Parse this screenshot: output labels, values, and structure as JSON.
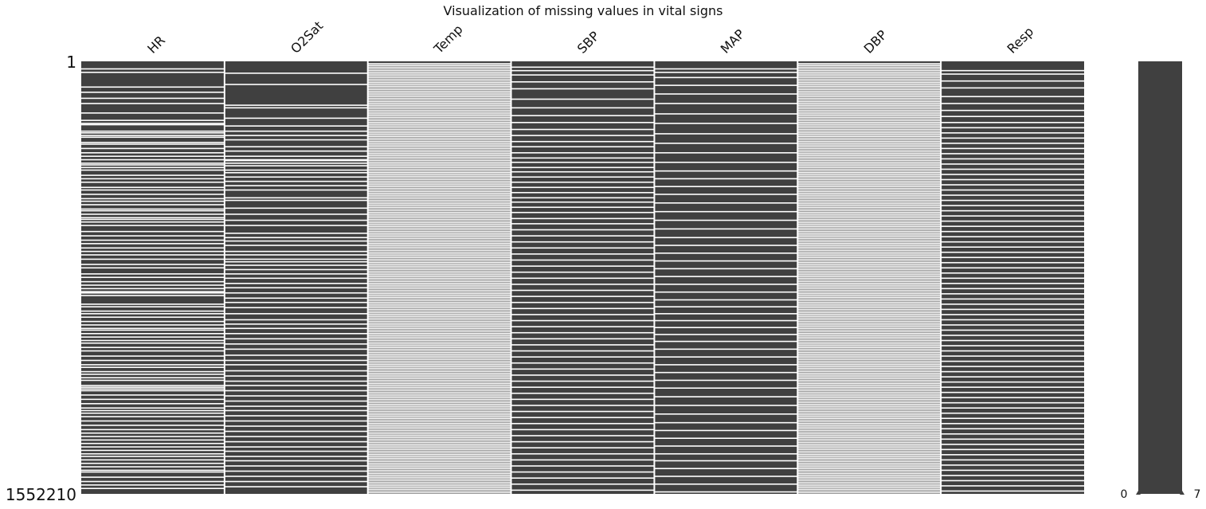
{
  "chart_data": {
    "type": "heatmap",
    "title": "Visualization of missing values in vital signs",
    "columns": [
      "HR",
      "O2Sat",
      "Temp",
      "SBP",
      "MAP",
      "DBP",
      "Resp"
    ],
    "row_range_labels": {
      "first": "1",
      "last": "1552210"
    },
    "rows_total": 1552210,
    "missing_rows": {
      "HR": [
        16,
        24,
        58,
        70,
        84,
        96,
        118,
        135,
        142,
        145,
        160,
        164,
        170,
        174,
        186,
        190,
        200,
        210,
        218,
        226,
        234,
        238,
        244,
        250,
        262,
        270,
        278,
        290,
        296,
        306,
        316,
        322,
        330,
        340,
        344,
        352,
        360,
        364,
        370,
        378,
        392,
        402,
        412,
        420,
        430,
        438,
        446,
        456,
        468,
        476,
        490,
        498,
        508,
        516,
        524,
        531,
        534,
        540,
        560,
        566,
        576,
        582,
        590,
        600,
        608,
        616,
        620,
        628,
        636,
        644,
        650,
        660,
        668,
        680,
        690,
        700,
        706,
        716,
        722,
        730,
        736,
        748,
        752,
        756,
        760,
        770,
        780,
        790,
        800,
        806,
        812,
        820,
        830,
        840,
        850,
        858,
        866,
        874,
        882,
        890,
        898,
        906,
        912,
        920,
        928,
        936,
        944,
        948,
        960,
        970,
        978,
        986
      ],
      "O2Sat": [
        26,
        52,
        100,
        106,
        130,
        148,
        160,
        170,
        180,
        196,
        206,
        218,
        226,
        228,
        234,
        240,
        250,
        256,
        266,
        276,
        286,
        296,
        314,
        320,
        338,
        352,
        366,
        378,
        396,
        406,
        414,
        424,
        438,
        446,
        456,
        462,
        470,
        480,
        490,
        500,
        512,
        522,
        534,
        546,
        556,
        568,
        582,
        596,
        606,
        616,
        628,
        640,
        652,
        664,
        678,
        690,
        700,
        714,
        726,
        738,
        748,
        760,
        772,
        784,
        796,
        806,
        818,
        830,
        842,
        854,
        866,
        878,
        890,
        900,
        912,
        922,
        934,
        946,
        958,
        970,
        982
      ],
      "Temp": [
        4,
        8,
        12,
        16,
        20,
        24,
        28,
        32,
        36,
        40,
        44,
        48,
        52,
        56,
        60,
        64,
        68,
        72,
        76,
        80,
        84,
        88,
        92,
        96,
        100,
        104,
        108,
        112,
        116,
        120,
        124,
        128,
        132,
        136,
        140,
        144,
        148,
        152,
        156,
        160,
        164,
        168,
        172,
        176,
        180,
        184,
        188,
        192,
        196,
        200,
        204,
        208,
        212,
        216,
        220,
        224,
        228,
        232,
        236,
        240,
        244,
        248,
        252,
        256,
        260,
        264,
        268,
        272,
        276,
        280,
        284,
        288,
        292,
        296,
        300,
        304,
        308,
        312,
        316,
        320,
        324,
        328,
        332,
        336,
        340,
        344,
        348,
        352,
        356,
        360,
        364,
        368,
        372,
        376,
        380,
        384,
        388,
        392,
        396,
        400,
        404,
        408,
        412,
        416,
        420,
        424,
        428,
        432,
        436,
        440,
        444,
        448,
        452,
        456,
        460,
        464,
        468,
        472,
        476,
        480,
        484,
        488,
        492,
        496,
        500,
        504,
        508,
        512,
        516,
        520,
        524,
        528,
        532,
        536,
        540,
        544,
        548,
        552,
        556,
        560,
        564,
        568,
        572,
        576,
        580,
        584,
        588,
        592,
        596,
        600,
        604,
        608,
        612,
        616,
        620,
        624,
        628,
        632,
        636,
        640,
        644,
        648,
        652,
        656,
        660,
        664,
        668,
        672,
        676,
        680,
        684,
        688,
        692,
        696,
        700,
        704,
        708,
        712,
        716,
        720,
        724,
        728,
        732,
        736,
        740,
        744,
        748,
        752,
        756,
        760,
        764,
        768,
        772,
        776,
        780,
        784,
        788,
        792,
        796,
        800,
        804,
        808,
        812,
        816,
        820,
        824,
        828,
        832,
        836,
        840,
        844,
        848,
        852,
        856,
        860,
        864,
        868,
        872,
        876,
        880,
        884,
        888,
        892,
        896,
        900,
        904,
        908,
        912,
        916,
        920,
        924,
        928,
        932,
        936,
        940,
        944,
        948,
        952,
        956,
        960,
        964,
        968,
        972,
        976,
        980,
        984,
        988,
        992,
        996
      ],
      "SBP": [
        12,
        20,
        30,
        46,
        62,
        86,
        106,
        124,
        140,
        156,
        170,
        184,
        196,
        210,
        222,
        232,
        244,
        254,
        266,
        278,
        290,
        302,
        314,
        324,
        336,
        348,
        362,
        374,
        388,
        402,
        416,
        430,
        444,
        458,
        472,
        486,
        500,
        514,
        528,
        542,
        556,
        570,
        584,
        598,
        612,
        626,
        640,
        654,
        668,
        682,
        696,
        710,
        724,
        738,
        752,
        766,
        780,
        794,
        808,
        822,
        836,
        850,
        864,
        878,
        892,
        906,
        920,
        934,
        948,
        962,
        976,
        990
      ],
      "MAP": [
        16,
        24,
        36,
        54,
        74,
        96,
        120,
        142,
        166,
        188,
        210,
        232,
        252,
        270,
        288,
        306,
        326,
        346,
        366,
        386,
        406,
        424,
        442,
        460,
        478,
        496,
        514,
        532,
        550,
        566,
        582,
        598,
        614,
        630,
        646,
        664,
        682,
        700,
        718,
        736,
        754,
        774,
        794,
        814,
        834,
        852,
        870,
        888,
        906,
        922,
        940,
        958,
        976,
        994
      ],
      "DBP": [
        4,
        8,
        12,
        16,
        20,
        24,
        28,
        32,
        36,
        40,
        44,
        48,
        52,
        56,
        60,
        64,
        68,
        72,
        76,
        80,
        84,
        88,
        92,
        96,
        100,
        104,
        108,
        112,
        116,
        120,
        124,
        128,
        132,
        136,
        140,
        144,
        148,
        152,
        156,
        160,
        164,
        168,
        172,
        176,
        180,
        184,
        188,
        192,
        196,
        200,
        204,
        208,
        212,
        216,
        220,
        224,
        228,
        232,
        236,
        240,
        244,
        248,
        252,
        256,
        260,
        264,
        268,
        272,
        276,
        280,
        284,
        288,
        292,
        296,
        300,
        304,
        308,
        312,
        316,
        320,
        324,
        328,
        332,
        336,
        340,
        344,
        348,
        352,
        356,
        360,
        364,
        368,
        372,
        376,
        380,
        384,
        388,
        392,
        396,
        400,
        404,
        408,
        412,
        416,
        420,
        424,
        428,
        432,
        436,
        440,
        444,
        448,
        452,
        456,
        460,
        464,
        468,
        472,
        476,
        480,
        484,
        488,
        492,
        496,
        500,
        504,
        508,
        512,
        516,
        520,
        524,
        528,
        532,
        536,
        540,
        544,
        548,
        552,
        556,
        560,
        564,
        568,
        572,
        576,
        580,
        584,
        588,
        592,
        596,
        600,
        604,
        608,
        612,
        616,
        620,
        624,
        628,
        632,
        636,
        640,
        644,
        648,
        652,
        656,
        660,
        664,
        668,
        672,
        676,
        680,
        684,
        688,
        692,
        696,
        700,
        704,
        708,
        712,
        716,
        720,
        724,
        728,
        732,
        736,
        740,
        744,
        748,
        752,
        756,
        760,
        764,
        768,
        772,
        776,
        780,
        784,
        788,
        792,
        796,
        800,
        804,
        808,
        812,
        816,
        820,
        824,
        828,
        832,
        836,
        840,
        844,
        848,
        852,
        856,
        860,
        864,
        868,
        872,
        876,
        880,
        884,
        888,
        892,
        896,
        900,
        904,
        908,
        912,
        916,
        920,
        924,
        928,
        932,
        936,
        940,
        944,
        948,
        952,
        956,
        960,
        964,
        968,
        972,
        976,
        980,
        984,
        988,
        992,
        996
      ],
      "Resp": [
        20,
        28,
        44,
        60,
        80,
        96,
        112,
        126,
        140,
        152,
        164,
        176,
        188,
        200,
        212,
        224,
        236,
        248,
        260,
        272,
        284,
        296,
        308,
        320,
        332,
        344,
        356,
        368,
        380,
        392,
        404,
        416,
        428,
        440,
        452,
        464,
        476,
        488,
        500,
        512,
        524,
        536,
        548,
        560,
        572,
        584,
        596,
        608,
        620,
        632,
        644,
        656,
        668,
        680,
        692,
        704,
        716,
        728,
        740,
        752,
        764,
        776,
        788,
        800,
        812,
        824,
        836,
        848,
        860,
        872,
        884,
        896,
        908,
        920,
        932,
        944,
        956,
        968,
        980,
        992
      ]
    },
    "sparkline": {
      "tick_min": "0",
      "tick_max": "7",
      "range": [
        0,
        7
      ]
    },
    "colors": {
      "present": "#404040",
      "missing": "#ffffff"
    }
  }
}
